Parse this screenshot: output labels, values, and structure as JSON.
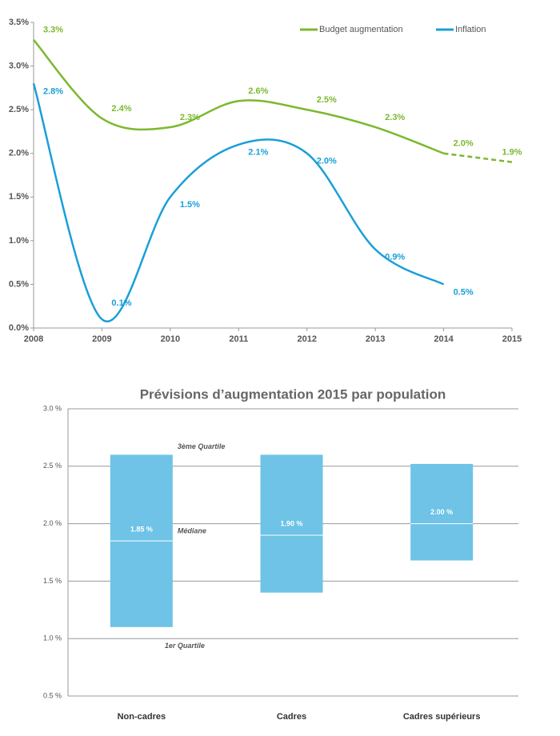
{
  "chart_data": [
    {
      "type": "line",
      "x": [
        2008,
        2009,
        2010,
        2011,
        2012,
        2013,
        2014,
        2015
      ],
      "xlim": [
        2008,
        2015
      ],
      "xticks": [
        2008,
        2009,
        2010,
        2011,
        2012,
        2013,
        2014,
        2015
      ],
      "ylim": [
        0,
        3.5
      ],
      "yticks": [
        {
          "value": 0,
          "label": "0.0%"
        },
        {
          "value": 0.5,
          "label": "0.5%"
        },
        {
          "value": 1,
          "label": "1.0%"
        },
        {
          "value": 1.5,
          "label": "1.5%"
        },
        {
          "value": 2,
          "label": "2.0%"
        },
        {
          "value": 2.5,
          "label": "2.5%"
        },
        {
          "value": 3,
          "label": "3.0%"
        },
        {
          "value": 3.5,
          "label": "3.5%"
        }
      ],
      "legend": "top-right",
      "series": [
        {
          "name": "Budget augmentation",
          "color": "#7cb82f",
          "dashed_from": 2014,
          "values": [
            3.3,
            2.4,
            2.3,
            2.6,
            2.5,
            2.3,
            2.0,
            1.9
          ],
          "value_labels": [
            "3.3%",
            "2.4%",
            "2.3%",
            "2.6%",
            "2.5%",
            "2.3%",
            "2.0%",
            "1.9%"
          ]
        },
        {
          "name": "Inflation",
          "color": "#1a9fd8",
          "values": [
            2.8,
            0.1,
            1.5,
            2.1,
            2.0,
            0.9,
            0.5,
            null
          ],
          "value_labels": [
            "2.8%",
            "0.1%",
            "1.5%",
            "2.1%",
            "2.0%",
            "0.9%",
            "0.5%",
            null
          ]
        }
      ]
    },
    {
      "type": "box",
      "title": "Prévisions d’augmentation 2015 par population",
      "categories": [
        "Non-cadres",
        "Cadres",
        "Cadres supérieurs"
      ],
      "q1": [
        1.1,
        1.4,
        1.68
      ],
      "median": [
        1.85,
        1.9,
        2.0
      ],
      "q3": [
        2.6,
        2.6,
        2.52
      ],
      "value_labels": [
        "1.85 %",
        "1.90 %",
        "2.00 %"
      ],
      "color": "#6ec3e6",
      "ylim": [
        0.5,
        3.0
      ],
      "yticks": [
        {
          "value": 0.5,
          "label": "0.5 %"
        },
        {
          "value": 1,
          "label": "1.0 %"
        },
        {
          "value": 1.5,
          "label": "1.5 %"
        },
        {
          "value": 2,
          "label": "2.0 %"
        },
        {
          "value": 2.5,
          "label": "2.5 %"
        },
        {
          "value": 3,
          "label": "3.0 %"
        }
      ],
      "grid": true,
      "annotations": {
        "q3": "3ème Quartile",
        "median": "Médiane",
        "q1": "1er Quartile"
      }
    }
  ]
}
